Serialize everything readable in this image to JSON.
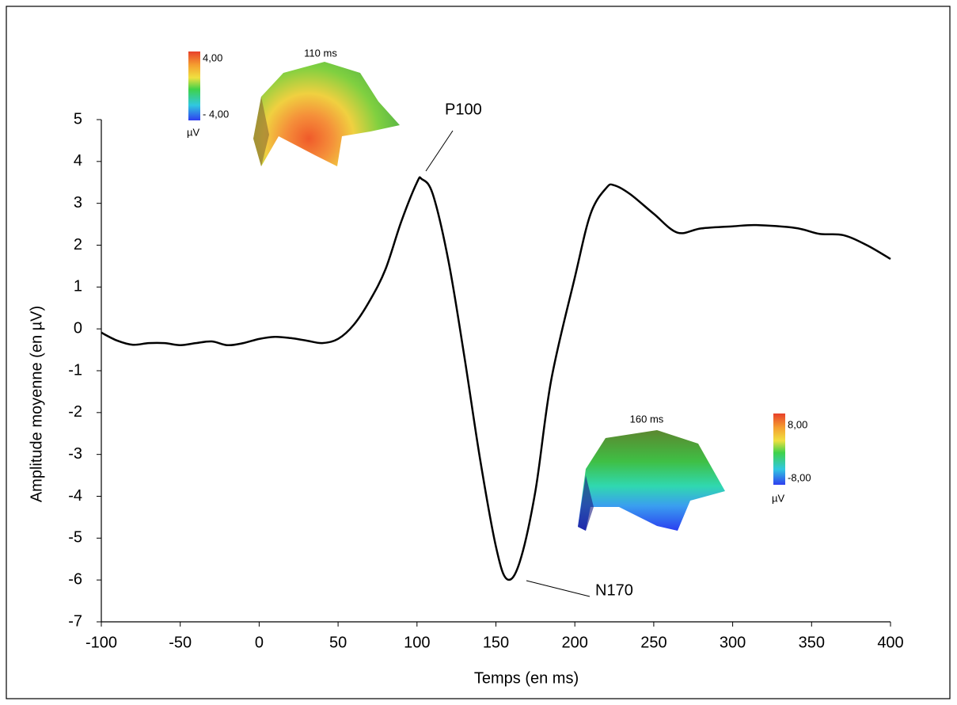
{
  "chart_data": {
    "type": "line",
    "x_label": "Temps (en ms)",
    "y_label": "Amplitude moyenne (en µV)",
    "x": [
      -100,
      -90,
      -80,
      -70,
      -60,
      -50,
      -40,
      -30,
      -20,
      -10,
      0,
      10,
      20,
      30,
      40,
      50,
      60,
      70,
      80,
      90,
      100,
      103,
      110,
      120,
      130,
      140,
      150,
      157,
      165,
      175,
      185,
      200,
      210,
      220,
      225,
      235,
      250,
      265,
      280,
      300,
      315,
      340,
      355,
      370,
      385,
      400
    ],
    "series": [
      {
        "color": "#000000",
        "values": [
          -0.09,
          -0.28,
          -0.38,
          -0.34,
          -0.34,
          -0.39,
          -0.34,
          -0.3,
          -0.39,
          -0.34,
          -0.24,
          -0.19,
          -0.22,
          -0.28,
          -0.34,
          -0.24,
          0.1,
          0.67,
          1.42,
          2.56,
          3.5,
          3.58,
          3.22,
          1.61,
          -0.66,
          -3.12,
          -5.2,
          -5.98,
          -5.58,
          -3.88,
          -1.23,
          1.23,
          2.75,
          3.37,
          3.43,
          3.22,
          2.75,
          2.3,
          2.4,
          2.45,
          2.48,
          2.41,
          2.27,
          2.24,
          2.0,
          1.67
        ]
      }
    ],
    "xlim": [
      -100,
      400
    ],
    "xticks": [
      -100,
      -50,
      0,
      50,
      100,
      150,
      200,
      250,
      300,
      350,
      400
    ],
    "ylim": [
      -7,
      5
    ],
    "yticks": [
      -7,
      -6,
      -5,
      -4,
      -3,
      -2,
      -1,
      0,
      1,
      2,
      3,
      4,
      5
    ],
    "grid": false,
    "annotations": [
      "P100",
      "N170"
    ],
    "topomaps": [
      {
        "label": "110 ms",
        "scale_max": "4,00",
        "scale_min": "- 4,00",
        "unit": "µV"
      },
      {
        "label": "160 ms",
        "scale_max": "8,00",
        "scale_min": "-8,00",
        "unit": "µV"
      }
    ]
  }
}
